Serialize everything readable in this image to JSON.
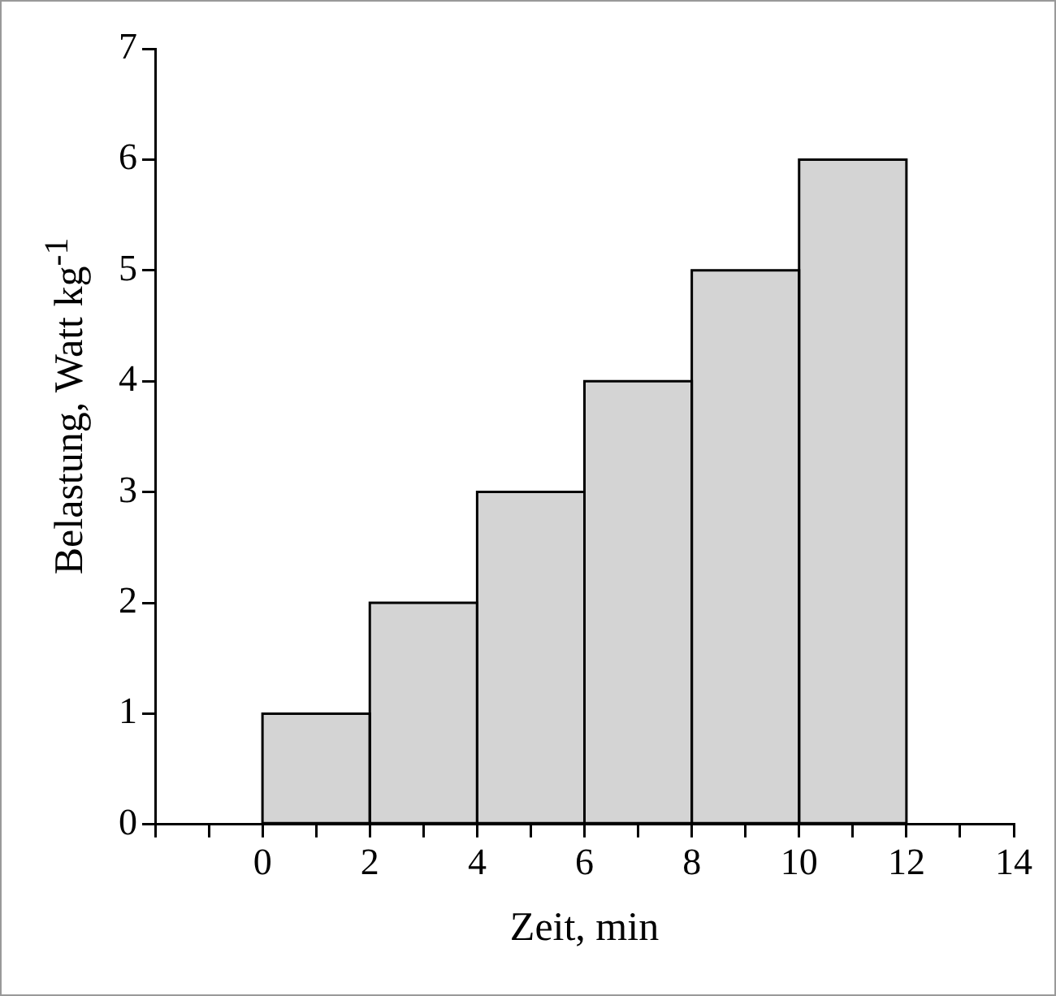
{
  "chart_data": {
    "type": "histogram",
    "xlabel": "Zeit, min",
    "ylabel": "Belastung, Watt kg$^{-1}$",
    "bins": [
      0,
      2,
      4,
      6,
      8,
      10,
      12
    ],
    "values": [
      1,
      2,
      3,
      4,
      5,
      6
    ],
    "color": "#d4d4d4",
    "xlim": [
      -2,
      14
    ],
    "xticks": [
      {
        "value": -2,
        "label": null
      },
      {
        "value": -1,
        "label": null
      },
      0,
      {
        "value": 1,
        "label": null
      },
      2,
      {
        "value": 3,
        "label": null
      },
      4,
      {
        "value": 5,
        "label": null
      },
      6,
      {
        "value": 7,
        "label": null
      },
      8,
      {
        "value": 9,
        "label": null
      },
      10,
      {
        "value": 11,
        "label": null
      },
      12,
      {
        "value": 13,
        "label": null
      },
      14
    ],
    "ylim": [
      0,
      7
    ],
    "yticks": [
      0,
      1,
      2,
      3,
      4,
      5,
      6,
      7
    ],
    "grid": false,
    "legend": false
  }
}
